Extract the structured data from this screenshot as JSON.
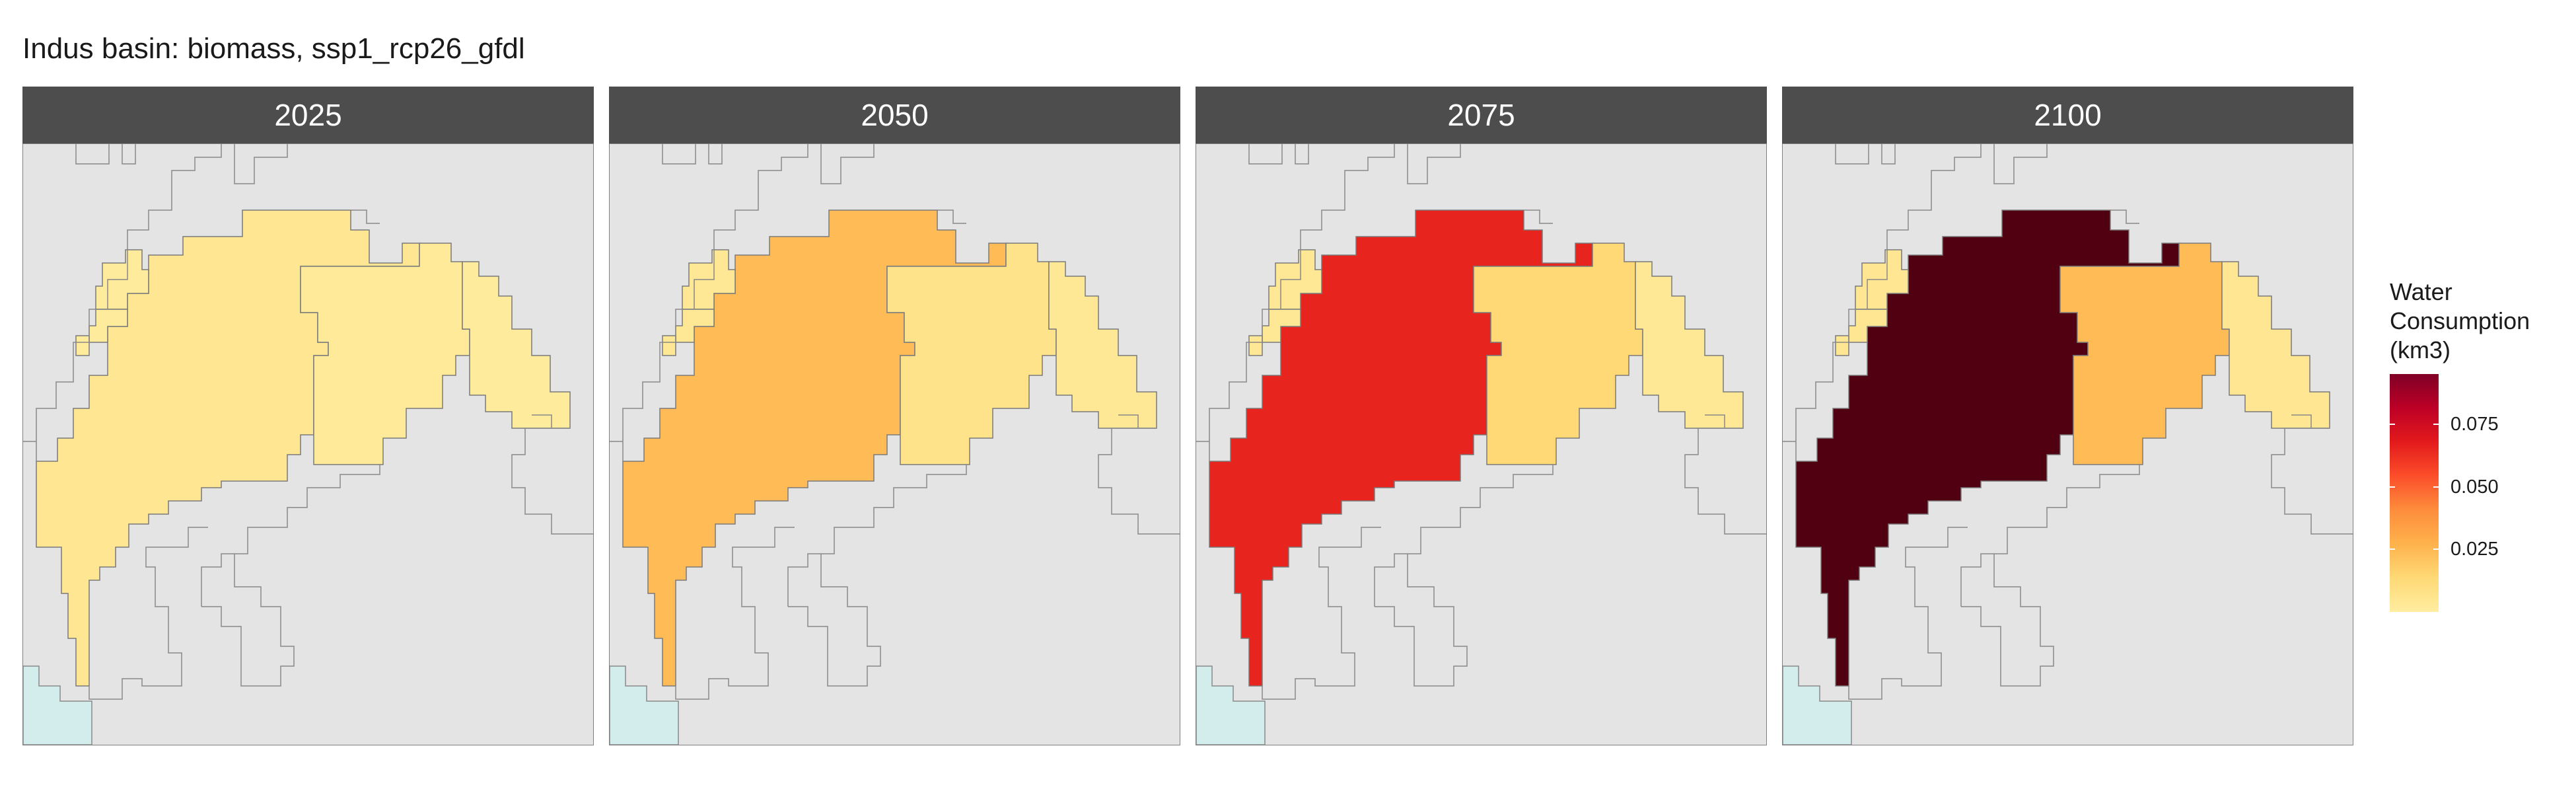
{
  "title": "Indus basin: biomass, ssp1_rcp26_gfdl",
  "panels": [
    {
      "label": "2025",
      "zones": {
        "main": 0.004,
        "east": 0.002,
        "north": 0.001
      }
    },
    {
      "label": "2050",
      "zones": {
        "main": 0.021,
        "east": 0.006,
        "north": 0.003
      }
    },
    {
      "label": "2075",
      "zones": {
        "main": 0.057,
        "east": 0.012,
        "north": 0.003
      }
    },
    {
      "label": "2100",
      "zones": {
        "main": 0.094,
        "east": 0.021,
        "north": 0.004
      }
    }
  ],
  "legend": {
    "title_lines": [
      "Water",
      "Consumption",
      "(km3)"
    ],
    "ticks": [
      "0.075",
      "0.050",
      "0.025"
    ],
    "tick_values": [
      0.075,
      0.05,
      0.025
    ],
    "min": 0.0,
    "max": 0.095
  },
  "colors": {
    "background": "#e4e4e4",
    "sea": "#d3ecec",
    "strip": "#4d4d4d",
    "scale": [
      "#ffeda0",
      "#fed976",
      "#feb24c",
      "#fd8d3c",
      "#fc4e2a",
      "#e31a1c",
      "#bd0026",
      "#800026",
      "#4d0010"
    ]
  }
}
